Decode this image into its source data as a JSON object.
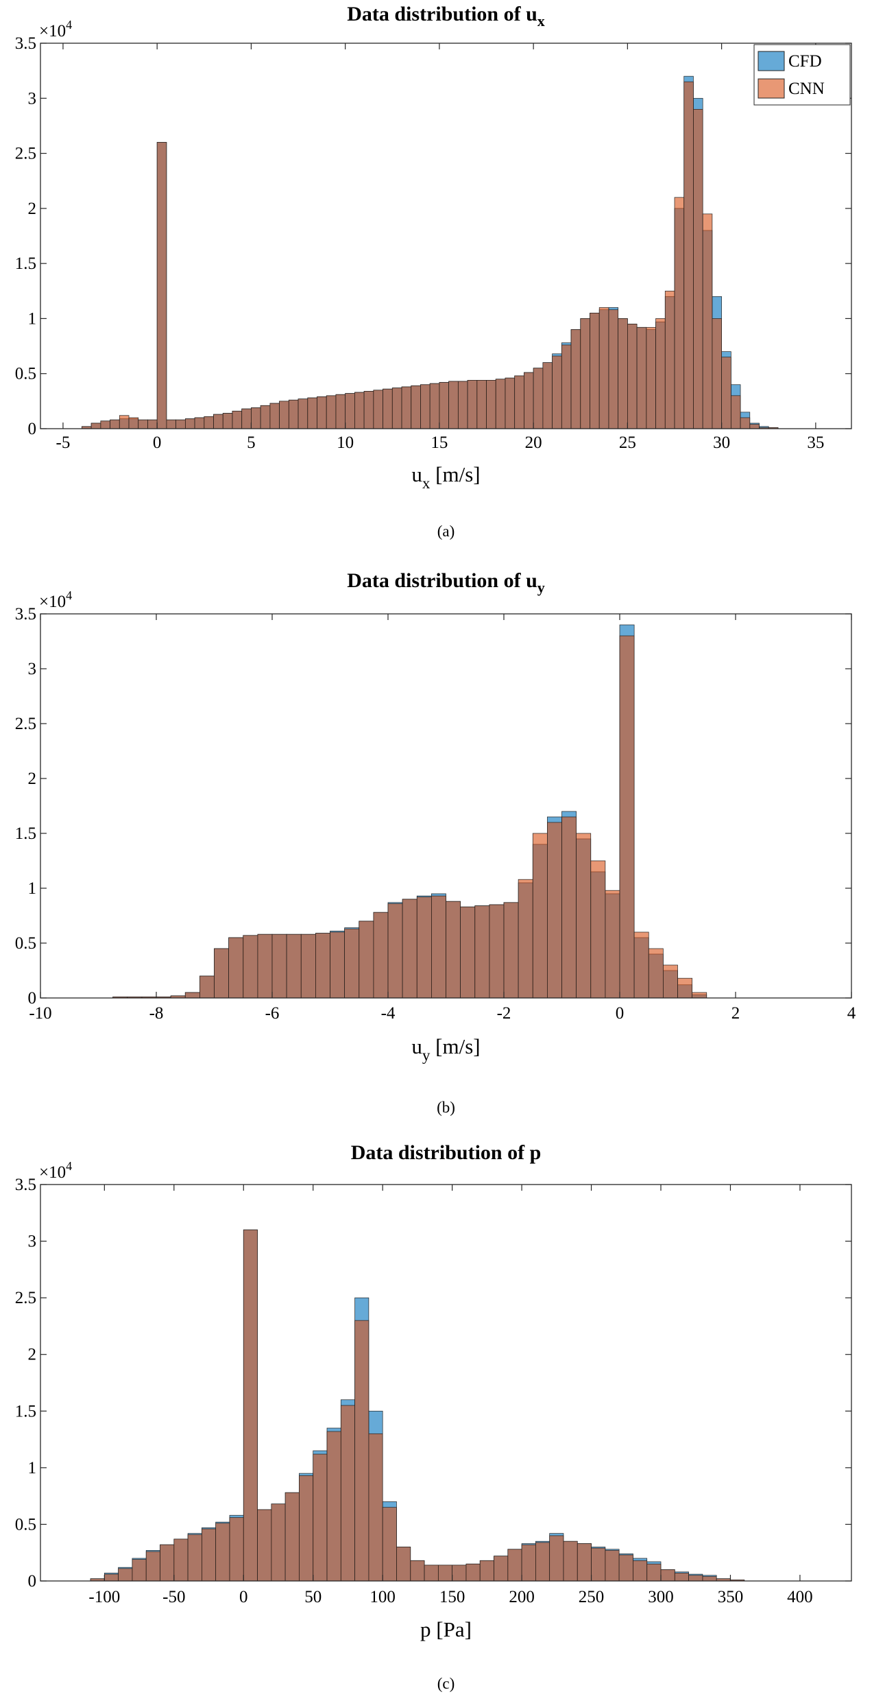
{
  "chart_data": [
    {
      "type": "histogram",
      "title": "Data distribution of u",
      "title_sub": "x",
      "xlabel": "u",
      "xlabel_sub": "x",
      "xlabel_unit": " [m/s]",
      "caption": "(a)",
      "y_exponent": {
        "base": "×10",
        "power": "4"
      },
      "xlim": [
        -6.2,
        36.9
      ],
      "ylim": [
        0,
        3.5
      ],
      "xticks": [
        -5,
        0,
        5,
        10,
        15,
        20,
        25,
        30,
        35
      ],
      "yticks": [
        0,
        0.5,
        1,
        1.5,
        2,
        2.5,
        3,
        3.5
      ],
      "legend": "northeast",
      "bins": [
        -4,
        -3.5,
        -3,
        -2.5,
        -2,
        -1.5,
        -1,
        -0.5,
        0,
        0.5,
        1,
        1.5,
        2,
        2.5,
        3,
        3.5,
        4,
        4.5,
        5,
        5.5,
        6,
        6.5,
        7,
        7.5,
        8,
        8.5,
        9,
        9.5,
        10,
        10.5,
        11,
        11.5,
        12,
        12.5,
        13,
        13.5,
        14,
        14.5,
        15,
        15.5,
        16,
        16.5,
        17,
        17.5,
        18,
        18.5,
        19,
        19.5,
        20,
        20.5,
        21,
        21.5,
        22,
        22.5,
        23,
        23.5,
        24,
        24.5,
        25,
        25.5,
        26,
        26.5,
        27,
        27.5,
        28,
        28.5,
        29,
        29.5,
        30,
        30.5,
        31,
        31.5,
        32,
        32.5,
        33
      ],
      "series": [
        {
          "name": "CFD",
          "color": "#0072bd",
          "values": [
            0.02,
            0.05,
            0.07,
            0.08,
            0.09,
            0.09,
            0.08,
            0.08,
            2.6,
            0.08,
            0.08,
            0.09,
            0.1,
            0.11,
            0.13,
            0.14,
            0.16,
            0.18,
            0.19,
            0.21,
            0.23,
            0.25,
            0.26,
            0.27,
            0.28,
            0.29,
            0.3,
            0.31,
            0.32,
            0.33,
            0.34,
            0.35,
            0.36,
            0.37,
            0.38,
            0.39,
            0.4,
            0.41,
            0.42,
            0.43,
            0.43,
            0.44,
            0.44,
            0.44,
            0.45,
            0.46,
            0.48,
            0.51,
            0.55,
            0.6,
            0.68,
            0.78,
            0.9,
            1.0,
            1.05,
            1.08,
            1.1,
            1.0,
            0.95,
            0.92,
            0.9,
            0.97,
            1.2,
            2.0,
            3.2,
            3.0,
            1.8,
            1.2,
            0.7,
            0.4,
            0.15,
            0.05,
            0.02,
            0.01
          ]
        },
        {
          "name": "CNN",
          "color": "#d95319",
          "values": [
            0.02,
            0.05,
            0.07,
            0.08,
            0.12,
            0.1,
            0.08,
            0.08,
            2.6,
            0.08,
            0.08,
            0.09,
            0.1,
            0.11,
            0.13,
            0.14,
            0.16,
            0.18,
            0.19,
            0.21,
            0.23,
            0.25,
            0.26,
            0.27,
            0.28,
            0.29,
            0.3,
            0.31,
            0.32,
            0.33,
            0.34,
            0.35,
            0.36,
            0.37,
            0.38,
            0.39,
            0.4,
            0.41,
            0.42,
            0.43,
            0.43,
            0.44,
            0.44,
            0.44,
            0.45,
            0.46,
            0.48,
            0.51,
            0.55,
            0.6,
            0.66,
            0.76,
            0.9,
            1.0,
            1.05,
            1.1,
            1.08,
            1.0,
            0.95,
            0.92,
            0.92,
            1.0,
            1.25,
            2.1,
            3.15,
            2.9,
            1.95,
            1.0,
            0.65,
            0.3,
            0.1,
            0.04,
            0.01,
            0.01
          ]
        }
      ]
    },
    {
      "type": "histogram",
      "title": "Data distribution of u",
      "title_sub": "y",
      "xlabel": "u",
      "xlabel_sub": "y",
      "xlabel_unit": " [m/s]",
      "caption": "(b)",
      "y_exponent": {
        "base": "×10",
        "power": "4"
      },
      "xlim": [
        -10,
        4
      ],
      "ylim": [
        0,
        3.5
      ],
      "xticks": [
        -10,
        -8,
        -6,
        -4,
        -2,
        0,
        2,
        4
      ],
      "yticks": [
        0,
        0.5,
        1,
        1.5,
        2,
        2.5,
        3,
        3.5
      ],
      "bins": [
        -9,
        -8.75,
        -8.5,
        -8.25,
        -8,
        -7.75,
        -7.5,
        -7.25,
        -7,
        -6.75,
        -6.5,
        -6.25,
        -6,
        -5.75,
        -5.5,
        -5.25,
        -5,
        -4.75,
        -4.5,
        -4.25,
        -4,
        -3.75,
        -3.5,
        -3.25,
        -3,
        -2.75,
        -2.5,
        -2.25,
        -2,
        -1.75,
        -1.5,
        -1.25,
        -1,
        -0.75,
        -0.5,
        -0.25,
        0,
        0.25,
        0.5,
        0.75,
        1,
        1.25,
        1.5
      ],
      "series": [
        {
          "name": "CFD",
          "color": "#0072bd",
          "values": [
            0.0,
            0.01,
            0.01,
            0.01,
            0.01,
            0.02,
            0.05,
            0.2,
            0.45,
            0.55,
            0.57,
            0.58,
            0.58,
            0.58,
            0.58,
            0.59,
            0.61,
            0.64,
            0.7,
            0.78,
            0.87,
            0.9,
            0.93,
            0.95,
            0.88,
            0.83,
            0.84,
            0.85,
            0.87,
            1.05,
            1.4,
            1.65,
            1.7,
            1.45,
            1.15,
            0.95,
            3.4,
            0.55,
            0.4,
            0.25,
            0.12,
            0.03
          ]
        },
        {
          "name": "CNN",
          "color": "#d95319",
          "values": [
            0.0,
            0.01,
            0.01,
            0.01,
            0.01,
            0.02,
            0.05,
            0.2,
            0.45,
            0.55,
            0.57,
            0.58,
            0.58,
            0.58,
            0.58,
            0.59,
            0.6,
            0.63,
            0.7,
            0.78,
            0.86,
            0.9,
            0.92,
            0.93,
            0.88,
            0.83,
            0.84,
            0.85,
            0.87,
            1.08,
            1.5,
            1.6,
            1.65,
            1.5,
            1.25,
            0.98,
            3.3,
            0.6,
            0.45,
            0.3,
            0.18,
            0.05
          ]
        }
      ]
    },
    {
      "type": "histogram",
      "title": "Data distribution of p",
      "xlabel": "p",
      "xlabel_unit": " [Pa]",
      "caption": "(c)",
      "y_exponent": {
        "base": "×10",
        "power": "4"
      },
      "xlim": [
        -146,
        437
      ],
      "ylim": [
        0,
        3.5
      ],
      "xticks": [
        -100,
        -50,
        0,
        50,
        100,
        150,
        200,
        250,
        300,
        350,
        400
      ],
      "yticks": [
        0,
        0.5,
        1,
        1.5,
        2,
        2.5,
        3,
        3.5
      ],
      "bins": [
        -110,
        -100,
        -90,
        -80,
        -70,
        -60,
        -50,
        -40,
        -30,
        -20,
        -10,
        0,
        10,
        20,
        30,
        40,
        50,
        60,
        70,
        80,
        90,
        100,
        110,
        120,
        130,
        140,
        150,
        160,
        170,
        180,
        190,
        200,
        210,
        220,
        230,
        240,
        250,
        260,
        270,
        280,
        290,
        300,
        310,
        320,
        330,
        340,
        350,
        360
      ],
      "series": [
        {
          "name": "CFD",
          "color": "#0072bd",
          "values": [
            0.02,
            0.07,
            0.12,
            0.2,
            0.27,
            0.32,
            0.37,
            0.42,
            0.47,
            0.52,
            0.58,
            3.1,
            0.63,
            0.68,
            0.78,
            0.95,
            1.15,
            1.35,
            1.6,
            2.5,
            1.5,
            0.7,
            0.3,
            0.18,
            0.14,
            0.14,
            0.14,
            0.15,
            0.18,
            0.22,
            0.28,
            0.33,
            0.35,
            0.42,
            0.35,
            0.33,
            0.3,
            0.28,
            0.24,
            0.2,
            0.17,
            0.1,
            0.08,
            0.06,
            0.05,
            0.02,
            0.01
          ]
        },
        {
          "name": "CNN",
          "color": "#d95319",
          "values": [
            0.02,
            0.06,
            0.11,
            0.19,
            0.26,
            0.32,
            0.37,
            0.41,
            0.46,
            0.51,
            0.56,
            3.1,
            0.63,
            0.68,
            0.78,
            0.93,
            1.12,
            1.32,
            1.55,
            2.3,
            1.3,
            0.65,
            0.3,
            0.18,
            0.14,
            0.14,
            0.14,
            0.15,
            0.18,
            0.22,
            0.28,
            0.32,
            0.34,
            0.4,
            0.35,
            0.33,
            0.29,
            0.27,
            0.23,
            0.18,
            0.15,
            0.1,
            0.07,
            0.05,
            0.04,
            0.02,
            0.01
          ]
        }
      ]
    }
  ]
}
